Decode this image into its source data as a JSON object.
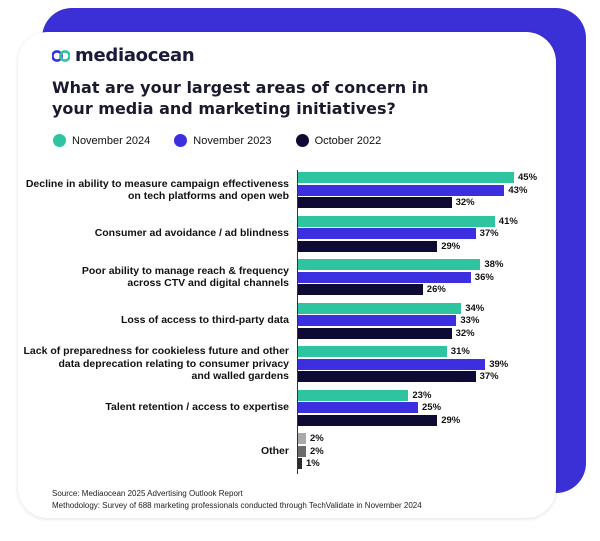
{
  "brand": "mediaocean",
  "title": "What are your largest areas of concern in your media and marketing initiatives?",
  "footer": {
    "source": "Source: Mediaocean 2025 Advertising Outlook Report",
    "methodology": "Methodology: Survey of 688 marketing professionals conducted through TechValidate in November 2024"
  },
  "colors": {
    "nov2024": "#2ec4a0",
    "nov2023": "#3b2fe0",
    "oct2022": "#0d0b33",
    "other_nov2024": "#a9a9a9",
    "other_nov2023": "#6b6b6b",
    "other_oct2022": "#2b2b2b"
  },
  "chart_data": {
    "type": "bar",
    "orientation": "horizontal",
    "categories": [
      [
        "Decline in ability to measure campaign effectiveness",
        "on tech platforms and open web"
      ],
      [
        "Consumer ad avoidance / ad blindness"
      ],
      [
        "Poor ability to manage reach & frequency",
        "across CTV and digital channels"
      ],
      [
        "Loss of access to third-party data"
      ],
      [
        "Lack of preparedness for cookieless future and other",
        "data deprecation relating to consumer privacy",
        "and walled gardens"
      ],
      [
        "Talent retention / access to expertise"
      ],
      [
        "Other"
      ]
    ],
    "series": [
      {
        "name": "November 2024",
        "values": [
          45,
          41,
          38,
          34,
          31,
          23,
          2
        ]
      },
      {
        "name": "November 2023",
        "values": [
          43,
          37,
          36,
          33,
          39,
          25,
          2
        ]
      },
      {
        "name": "October 2022",
        "values": [
          32,
          29,
          26,
          32,
          37,
          29,
          1
        ]
      }
    ],
    "value_suffix": "%",
    "legend_position": "top",
    "grid": false
  }
}
